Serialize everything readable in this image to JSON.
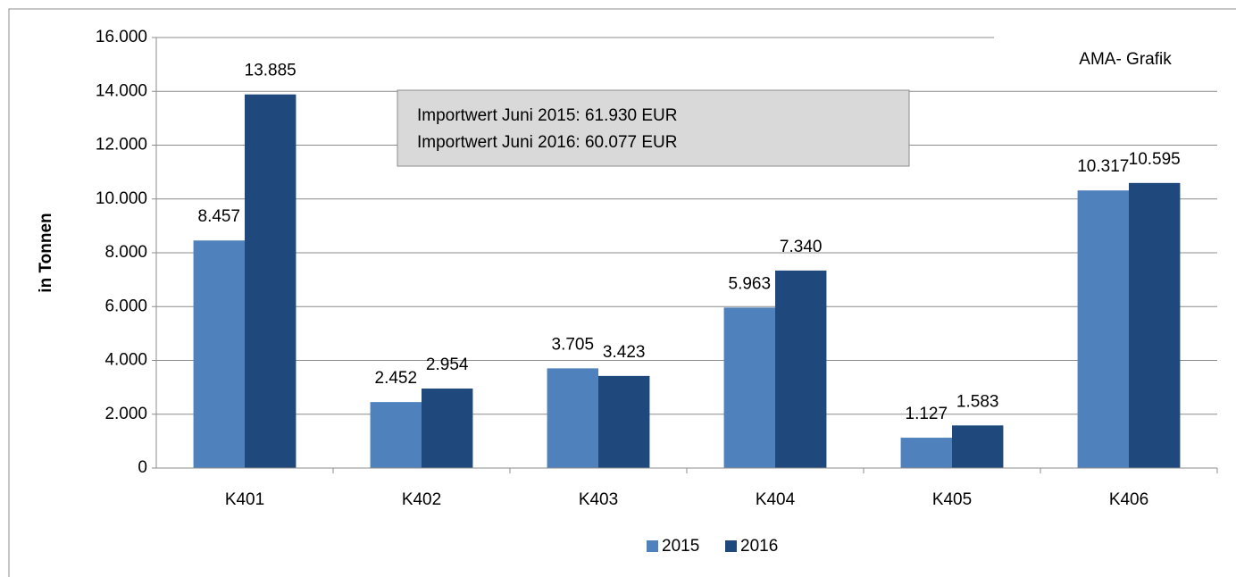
{
  "chart_data": {
    "type": "bar",
    "y_label": "in Tonnen",
    "categories": [
      "K401",
      "K402",
      "K403",
      "K404",
      "K405",
      "K406"
    ],
    "series": [
      {
        "name": "2015",
        "color": "#4f81bd",
        "values": [
          8457,
          2452,
          3705,
          5963,
          1127,
          10317
        ],
        "value_labels": [
          "8.457",
          "2.452",
          "3.705",
          "5.963",
          "1.127",
          "10.317"
        ]
      },
      {
        "name": "2016",
        "color": "#1f497d",
        "values": [
          13885,
          2954,
          3423,
          7340,
          1583,
          10595
        ],
        "value_labels": [
          "13.885",
          "2.954",
          "3.423",
          "7.340",
          "1.583",
          "10.595"
        ]
      }
    ],
    "ylim": [
      0,
      16000
    ],
    "yticks": [
      0,
      {
        "value": 2000,
        "label": "2.000"
      },
      {
        "value": 4000,
        "label": "4.000"
      },
      {
        "value": 6000,
        "label": "6.000"
      },
      {
        "value": 8000,
        "label": "8.000"
      },
      {
        "value": 10000,
        "label": "10.000"
      },
      {
        "value": 12000,
        "label": "12.000"
      },
      {
        "value": 14000,
        "label": "14.000"
      },
      {
        "value": 16000,
        "label": "16.000"
      }
    ],
    "grid": true,
    "legend": "bottom",
    "annotations": [
      "Importwert Juni 2015: 61.930 EUR",
      "Importwert Juni 2016: 60.077 EUR"
    ],
    "source": "AMA- Grafik"
  }
}
